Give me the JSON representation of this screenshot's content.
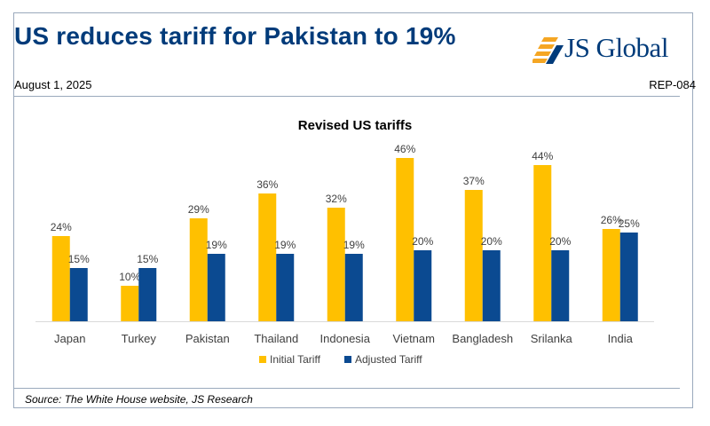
{
  "header": {
    "headline": "US reduces tariff for Pakistan to 19%",
    "brand": "JS Global",
    "date": "August 1, 2025",
    "report_id": "REP-084"
  },
  "footer": {
    "source": "Source: The White House website, JS Research"
  },
  "colors": {
    "brand_blue": "#003b7a",
    "initial": "#ffc000",
    "adjusted": "#0b4a91",
    "logo_orange": "#f5a623"
  },
  "chart_data": {
    "type": "bar",
    "title": "Revised US tariffs",
    "categories": [
      "Japan",
      "Turkey",
      "Pakistan",
      "Thailand",
      "Indonesia",
      "Vietnam",
      "Bangladesh",
      "Srilanka",
      "India"
    ],
    "series": [
      {
        "name": "Initial Tariff",
        "color": "#ffc000",
        "values": [
          24,
          10,
          29,
          36,
          32,
          46,
          37,
          44,
          26
        ],
        "labels": [
          "24%",
          "10%",
          "29%",
          "36%",
          "32%",
          "46%",
          "37%",
          "44%",
          "26%"
        ]
      },
      {
        "name": "Adjusted Tariff",
        "color": "#0b4a91",
        "values": [
          15,
          15,
          19,
          19,
          19,
          20,
          20,
          20,
          25
        ],
        "labels": [
          "15%",
          "15%",
          "19%",
          "19%",
          "19%",
          "20%",
          "20%",
          "20%",
          "25%"
        ]
      }
    ],
    "ylim": [
      0,
      46
    ],
    "grid": false,
    "legend": "bottom",
    "data_labels": true
  }
}
